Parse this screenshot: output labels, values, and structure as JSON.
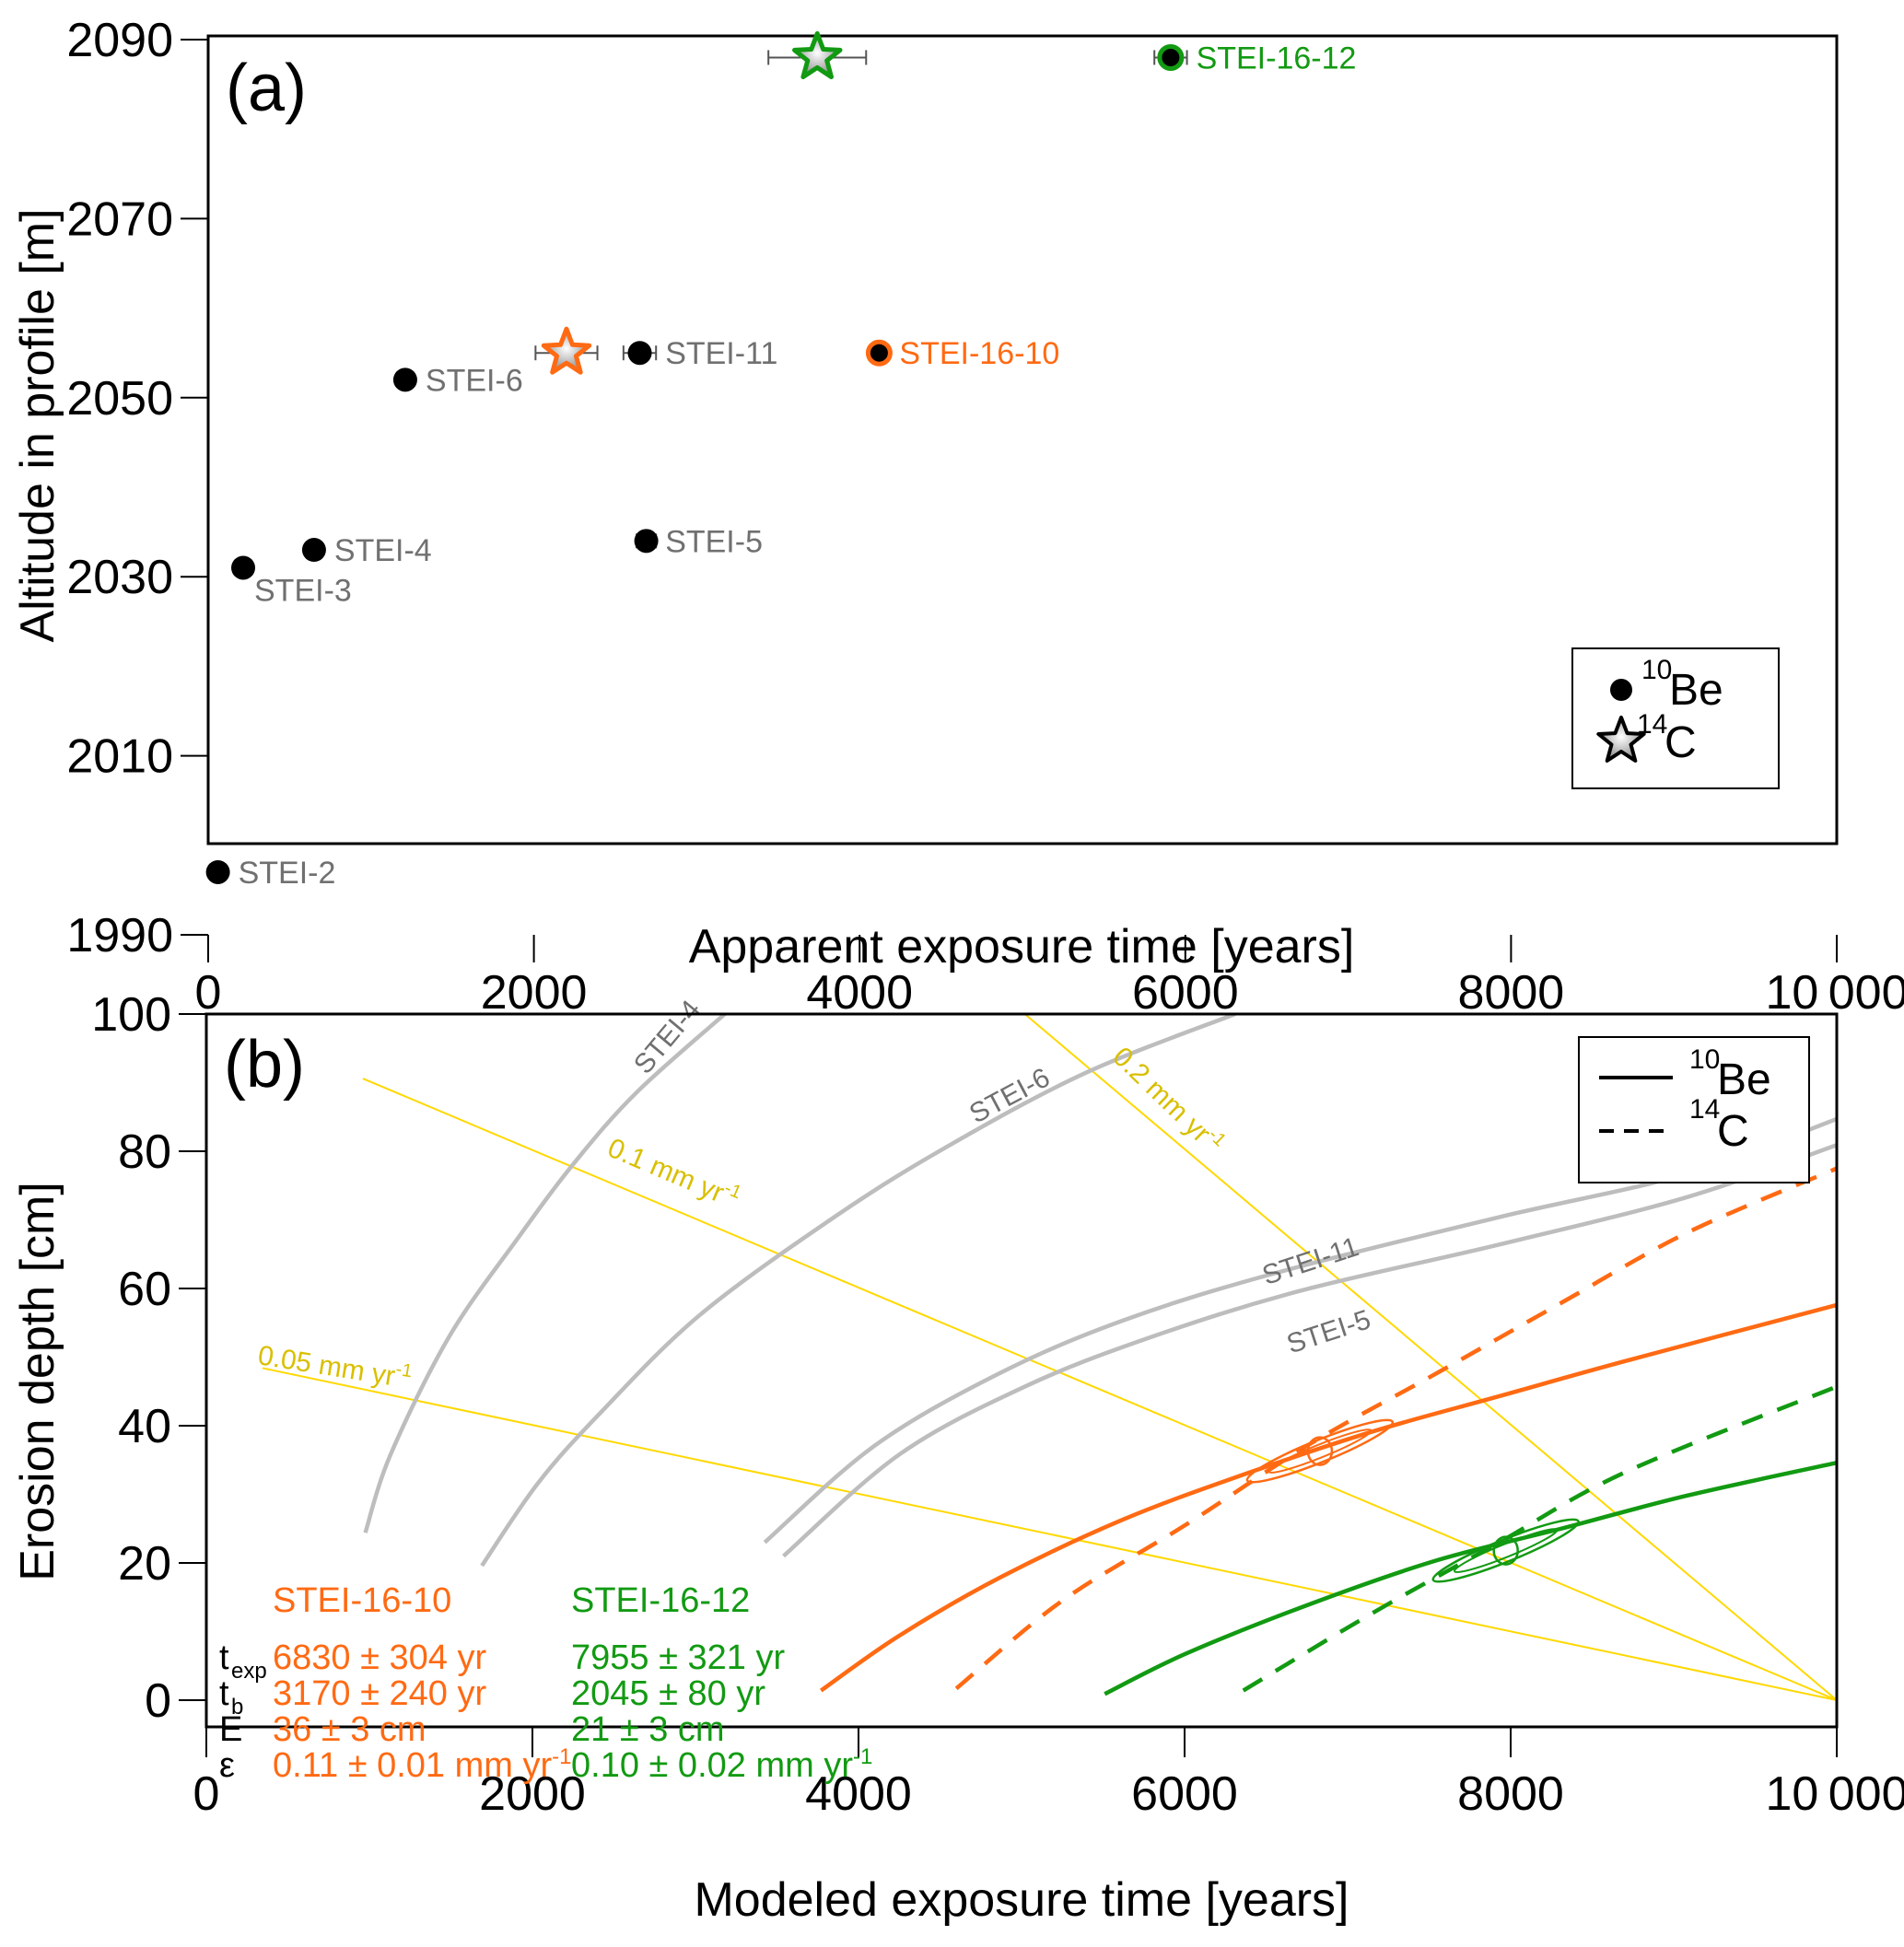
{
  "colors": {
    "orange": "#ff6a13",
    "green": "#129a12",
    "gray_curve": "#bdbdbd",
    "gray_label": "#707070",
    "yellow_line": "#ffd800",
    "yellow_label": "#d9bf00",
    "errorbar": "#555555"
  },
  "chart_data": [
    {
      "id": "a",
      "type": "scatter",
      "panel_label": "(a)",
      "xlabel": "Apparent exposure time [years]",
      "ylabel": "Altitude in profile [m]",
      "xlim": [
        0,
        10000
      ],
      "ylim": [
        1990,
        2090
      ],
      "xticks": [
        0,
        2000,
        4000,
        6000,
        8000,
        10000
      ],
      "xtick_labels": [
        "0",
        "2000",
        "4000",
        "6000",
        "8000",
        "10 000"
      ],
      "yticks": [
        1990,
        2010,
        2030,
        2050,
        2070,
        2090
      ],
      "ytick_labels": [
        "1990",
        "2010",
        "2030",
        "2050",
        "2070",
        "2090"
      ],
      "grid": false,
      "legend_position": "bottom-right",
      "legend": [
        {
          "marker": "circle",
          "sup": "10",
          "label": "Be"
        },
        {
          "marker": "star",
          "sup": "14",
          "label": "C"
        }
      ],
      "points": [
        {
          "name": "STEI-2",
          "nuclide": "10Be",
          "x": 60,
          "y": 1997,
          "err": 0,
          "color": "gray"
        },
        {
          "name": "STEI-3",
          "nuclide": "10Be",
          "x": 215,
          "y": 2031,
          "err": 0,
          "color": "gray",
          "label_pos": "below"
        },
        {
          "name": "STEI-4",
          "nuclide": "10Be",
          "x": 650,
          "y": 2033,
          "err": 0,
          "color": "gray"
        },
        {
          "name": "STEI-6",
          "nuclide": "10Be",
          "x": 1210,
          "y": 2052,
          "err": 0,
          "color": "gray"
        },
        {
          "name": "STEI-11",
          "nuclide": "10Be",
          "x": 2650,
          "y": 2055,
          "err": 100,
          "color": "gray"
        },
        {
          "name": "STEI-5",
          "nuclide": "10Be",
          "x": 2690,
          "y": 2034,
          "err": 60,
          "color": "gray"
        },
        {
          "name": "STEI-16-10",
          "nuclide": "10Be",
          "x": 4120,
          "y": 2055,
          "err": 0,
          "color": "orange"
        },
        {
          "name": "STEI-16-12",
          "nuclide": "10Be",
          "x": 5910,
          "y": 2088,
          "err": 100,
          "color": "green"
        },
        {
          "name": "",
          "nuclide": "14C",
          "x": 2200,
          "y": 2055,
          "err": 190,
          "color": "orange"
        },
        {
          "name": "",
          "nuclide": "14C",
          "x": 3740,
          "y": 2088,
          "err": 300,
          "color": "green"
        }
      ]
    },
    {
      "id": "b",
      "type": "line",
      "panel_label": "(b)",
      "xlabel": "Modeled exposure time [years]",
      "ylabel": "Erosion depth [cm]",
      "xlim": [
        0,
        10000
      ],
      "ylim": [
        -4,
        100
      ],
      "xticks": [
        0,
        2000,
        4000,
        6000,
        8000,
        10000
      ],
      "xtick_labels": [
        "0",
        "2000",
        "4000",
        "6000",
        "8000",
        "10 000"
      ],
      "yticks": [
        0,
        20,
        40,
        60,
        80,
        100
      ],
      "ytick_labels": [
        "0",
        "20",
        "40",
        "60",
        "80",
        "100"
      ],
      "grid": false,
      "legend_position": "top-right",
      "legend": [
        {
          "style": "solid",
          "sup": "10",
          "label": "Be"
        },
        {
          "style": "dashed",
          "sup": "14",
          "label": "C"
        }
      ],
      "series": [
        {
          "name": "STEI-4",
          "kind": "10Be",
          "color": "gray",
          "style": "solid",
          "x": [
            975,
            1130,
            1490,
            1910,
            2260,
            2640,
            3180
          ],
          "y": [
            24.4,
            35.8,
            53,
            67.3,
            78.4,
            88.6,
            100
          ]
        },
        {
          "name": "STEI-6",
          "kind": "10Be",
          "color": "gray",
          "style": "solid",
          "x": [
            1690,
            2030,
            2410,
            3030,
            3870,
            4560,
            5400,
            6310
          ],
          "y": [
            19.6,
            31.5,
            41.7,
            56.2,
            70.7,
            80.9,
            91.5,
            100
          ]
        },
        {
          "name": "STEI-11",
          "kind": "10Be",
          "color": "gray",
          "style": "solid",
          "x": [
            3425,
            4100,
            4870,
            5630,
            6550,
            7930,
            9080,
            10000
          ],
          "y": [
            23,
            37.1,
            47.7,
            55.4,
            62.2,
            70.4,
            76.7,
            84.7
          ]
        },
        {
          "name": "STEI-5",
          "kind": "10Be",
          "color": "gray",
          "style": "solid",
          "x": [
            3540,
            4250,
            5020,
            5780,
            6700,
            7930,
            9080,
            10000
          ],
          "y": [
            21,
            35.8,
            45.7,
            52.8,
            59.6,
            66.4,
            73.3,
            80.9
          ]
        },
        {
          "name": "STEI-16-10 10Be",
          "kind": "10Be",
          "color": "orange",
          "style": "solid",
          "x": [
            3770,
            4250,
            4870,
            5630,
            6400,
            7160,
            7930,
            8700,
            10000
          ],
          "y": [
            1.4,
            9.4,
            17.9,
            26.4,
            33.2,
            39.2,
            44.3,
            49.4,
            57.6
          ]
        },
        {
          "name": "STEI-16-10 14C",
          "kind": "14C",
          "color": "orange",
          "style": "dashed",
          "x": [
            4600,
            5250,
            6010,
            6780,
            7550,
            8310,
            9080,
            10000
          ],
          "y": [
            1.7,
            14.5,
            25.6,
            37.5,
            47.7,
            57.9,
            68.1,
            77.5
          ]
        },
        {
          "name": "STEI-16-12 10Be",
          "kind": "10Be",
          "color": "green",
          "style": "solid",
          "x": [
            5510,
            6010,
            6780,
            7550,
            8310,
            9080,
            10000
          ],
          "y": [
            0.9,
            6.8,
            14.1,
            20.4,
            25,
            29.8,
            34.6
          ]
        },
        {
          "name": "STEI-16-12 14C",
          "kind": "14C",
          "color": "green",
          "style": "dashed",
          "x": [
            6360,
            7160,
            7930,
            8700,
            10000
          ],
          "y": [
            1.4,
            12.8,
            23,
            33.2,
            45.7
          ]
        },
        {
          "name": "0.05 mm yr-1",
          "kind": "erosion-rate",
          "color": "yellow",
          "style": "solid",
          "x": [
            345,
            10000
          ],
          "y": [
            48.4,
            0
          ]
        },
        {
          "name": "0.1 mm yr-1",
          "kind": "erosion-rate",
          "color": "yellow",
          "style": "solid",
          "x": [
            960,
            10000
          ],
          "y": [
            90.6,
            0
          ]
        },
        {
          "name": "0.2 mm yr-1",
          "kind": "erosion-rate",
          "color": "yellow",
          "style": "solid",
          "x": [
            5020,
            10000
          ],
          "y": [
            100,
            0
          ]
        }
      ],
      "curve_labels": [
        {
          "text": "STEI-4",
          "x": 2700,
          "y": 91,
          "angle": -50,
          "color": "gray"
        },
        {
          "text": "STEI-6",
          "x": 4720,
          "y": 84,
          "angle": -28,
          "color": "gray"
        },
        {
          "text": "STEI-11",
          "x": 6500,
          "y": 60.5,
          "angle": -18,
          "color": "gray"
        },
        {
          "text": "STEI-5",
          "x": 6650,
          "y": 50.5,
          "angle": -18,
          "color": "gray"
        },
        {
          "text": "0.1 mm yr",
          "sup": "-1",
          "x": 2450,
          "y": 79.5,
          "angle": 23,
          "color": "yellow"
        },
        {
          "text": "0.05 mm yr",
          "sup": "-1",
          "x": 310,
          "y": 49,
          "angle": 9,
          "color": "yellow"
        },
        {
          "text": "0.2 mm yr",
          "sup": "-1",
          "x": 5550,
          "y": 93.5,
          "angle": 44,
          "color": "yellow"
        }
      ],
      "intersections": [
        {
          "name": "STEI-16-10",
          "x": 6830,
          "y": 36.3,
          "color": "orange"
        },
        {
          "name": "STEI-16-12",
          "x": 7970,
          "y": 21.8,
          "color": "green"
        }
      ],
      "stats": {
        "symbols": [
          {
            "main": "t",
            "sub": "exp"
          },
          {
            "main": "t",
            "sub": "b"
          },
          {
            "main": "E",
            "sub": ""
          },
          {
            "main": "ε",
            "sub": ""
          }
        ],
        "samples": [
          {
            "name": "STEI-16-10",
            "color": "orange",
            "t_exp": "6830 ± 304 yr",
            "t_b": "3170 ± 240 yr",
            "E": "36 ± 3 cm",
            "epsilon": "0.11 ± 0.01 mm yr",
            "epsilon_sup": "-1"
          },
          {
            "name": "STEI-16-12",
            "color": "green",
            "t_exp": "7955 ± 321 yr",
            "t_b": "2045 ± 80 yr",
            "E": "21 ± 3 cm",
            "epsilon": "0.10 ± 0.02 mm yr",
            "epsilon_sup": "-1"
          }
        ]
      }
    }
  ]
}
